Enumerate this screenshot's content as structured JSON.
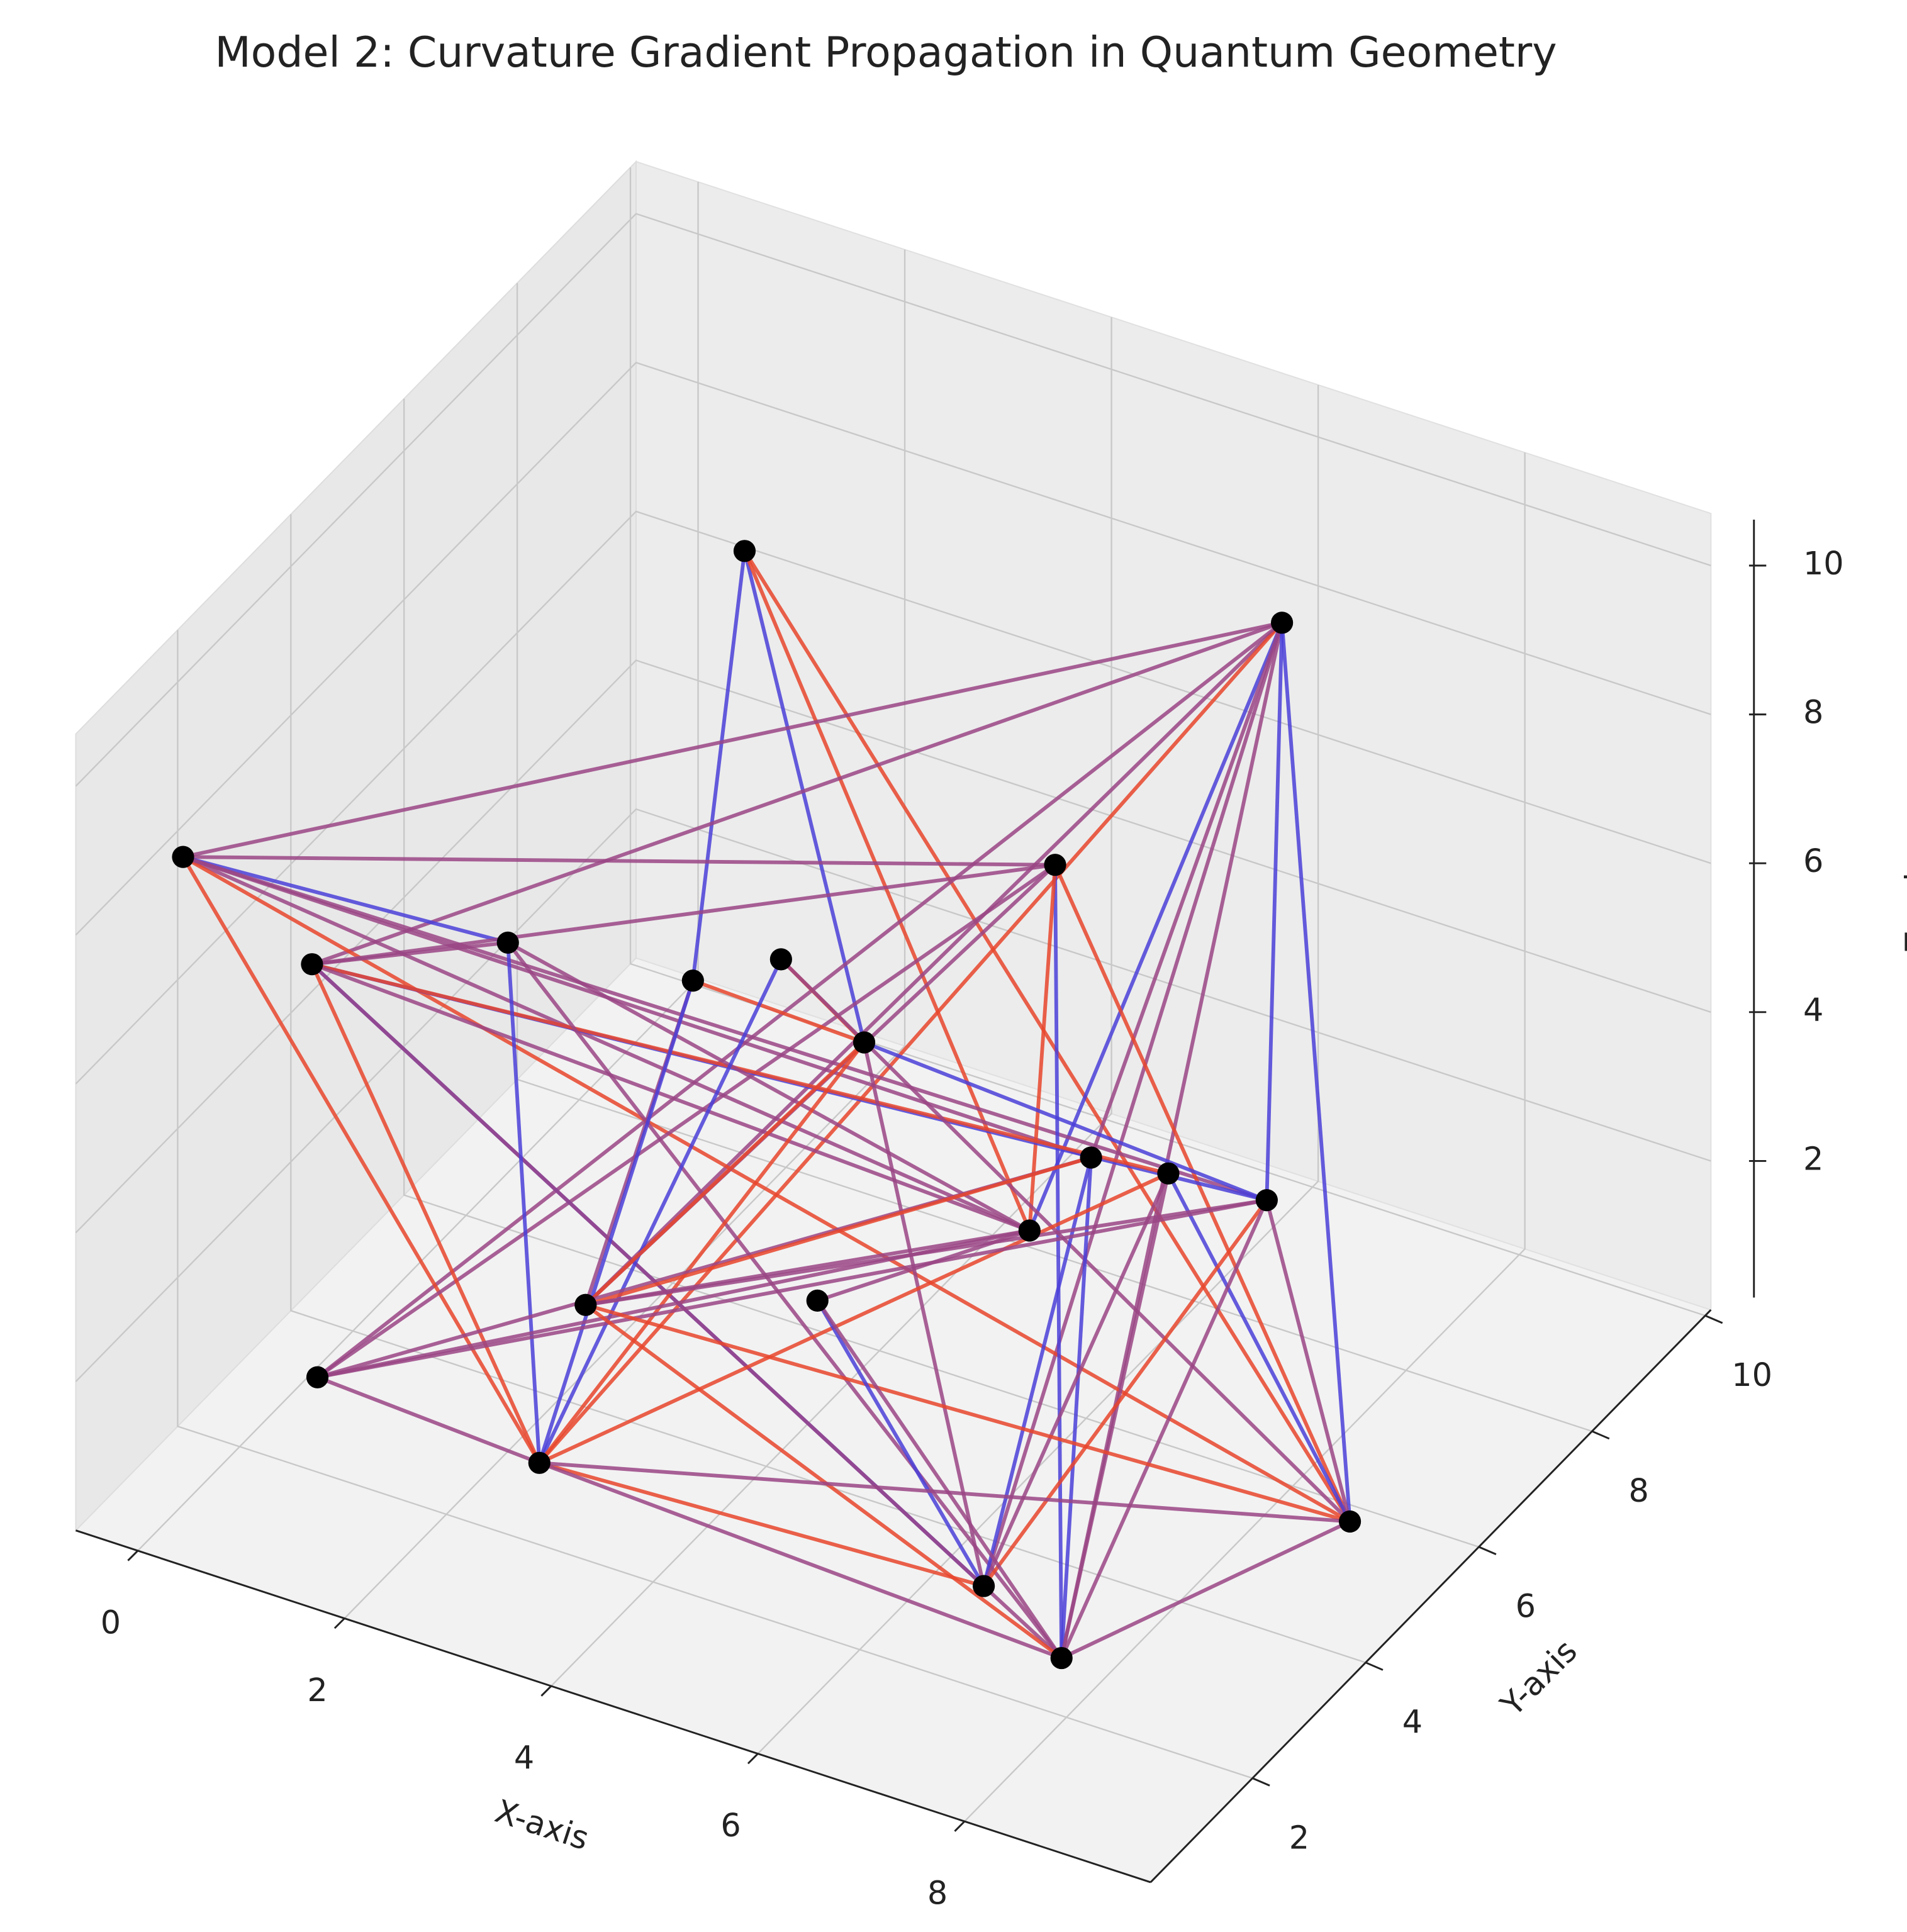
{
  "chart_data": {
    "type": "network3d",
    "title": "Model 2: Curvature Gradient Propagation in Quantum Geometry",
    "xlabel": "X-axis",
    "ylabel": "Y-axis",
    "zlabel": "Z-axis",
    "nodes": {
      "x": [
        1.6,
        6.8,
        0.0,
        5.7,
        0.7,
        1.5,
        1.1,
        2.5,
        4.4,
        5.5,
        5.7,
        7.2,
        6.0,
        2.8,
        3.4,
        1.3,
        2.9,
        9.1,
        7.2,
        8.5
      ],
      "y": [
        8,
        8,
        1,
        6,
        2,
        4,
        8,
        7,
        5,
        7,
        8,
        7,
        5,
        3,
        6,
        1,
        2,
        5,
        2,
        1
      ],
      "z": [
        8.1,
        9.5,
        8.7,
        7.3,
        6.8,
        5.9,
        2.1,
        3.8,
        5.1,
        2.5,
        1.6,
        2.7,
        3.3,
        2.4,
        0.4,
        2.3,
        1.1,
        0.8,
        1.4,
        1.8
      ]
    },
    "node_color": "#000000",
    "edges": [
      [
        0,
        6
      ],
      [
        0,
        8
      ],
      [
        0,
        12
      ],
      [
        0,
        17
      ],
      [
        1,
        2
      ],
      [
        1,
        4
      ],
      [
        1,
        13
      ],
      [
        1,
        16
      ],
      [
        1,
        18
      ],
      [
        1,
        19
      ],
      [
        1,
        12
      ],
      [
        1,
        11
      ],
      [
        1,
        17
      ],
      [
        1,
        9
      ],
      [
        1,
        15
      ],
      [
        2,
        3
      ],
      [
        2,
        5
      ],
      [
        2,
        16
      ],
      [
        2,
        12
      ],
      [
        2,
        17
      ],
      [
        2,
        11
      ],
      [
        2,
        9
      ],
      [
        3,
        4
      ],
      [
        3,
        13
      ],
      [
        3,
        15
      ],
      [
        3,
        19
      ],
      [
        3,
        12
      ],
      [
        3,
        17
      ],
      [
        4,
        5
      ],
      [
        4,
        16
      ],
      [
        4,
        18
      ],
      [
        4,
        11
      ],
      [
        4,
        10
      ],
      [
        4,
        19
      ],
      [
        4,
        12
      ],
      [
        5,
        16
      ],
      [
        5,
        19
      ],
      [
        5,
        12
      ],
      [
        6,
        8
      ],
      [
        6,
        13
      ],
      [
        6,
        16
      ],
      [
        7,
        8
      ],
      [
        7,
        16
      ],
      [
        7,
        17
      ],
      [
        8,
        11
      ],
      [
        8,
        13
      ],
      [
        8,
        16
      ],
      [
        8,
        18
      ],
      [
        9,
        18
      ],
      [
        9,
        19
      ],
      [
        9,
        15
      ],
      [
        9,
        13
      ],
      [
        10,
        18
      ],
      [
        10,
        19
      ],
      [
        10,
        17
      ],
      [
        10,
        16
      ],
      [
        11,
        13
      ],
      [
        11,
        18
      ],
      [
        11,
        17
      ],
      [
        11,
        19
      ],
      [
        11,
        15
      ],
      [
        12,
        13
      ],
      [
        12,
        14
      ],
      [
        12,
        15
      ],
      [
        13,
        19
      ],
      [
        13,
        17
      ],
      [
        14,
        18
      ],
      [
        14,
        19
      ],
      [
        15,
        16
      ],
      [
        16,
        18
      ],
      [
        16,
        17
      ],
      [
        16,
        19
      ],
      [
        17,
        19
      ]
    ],
    "edge_colors": [
      "#4a3fd8",
      "#4a3fd8",
      "#e8452c",
      "#e8452c",
      "#9a4585",
      "#9a4585",
      "#9a4585",
      "#e8452c",
      "#9a4585",
      "#9a4585",
      "#4a3fd8",
      "#4a3fd8",
      "#4a3fd8",
      "#9a4585",
      "#9a4585",
      "#9a4585",
      "#4a3fd8",
      "#e8452c",
      "#9a4585",
      "#e8452c",
      "#9a4585",
      "#9a4585",
      "#9a4585",
      "#9a4585",
      "#9a4585",
      "#4a3fd8",
      "#e8452c",
      "#e8452c",
      "#9a4585",
      "#e8452c",
      "#4a3fd8",
      "#4a3fd8",
      "#e8452c",
      "#9a4585",
      "#9a4585",
      "#4a3fd8",
      "#9a4585",
      "#9a4585",
      "#e8452c",
      "#9a4585",
      "#4a3fd8",
      "#e8452c",
      "#4a3fd8",
      "#9a4585",
      "#4a3fd8",
      "#e8452c",
      "#e8452c",
      "#9a4585",
      "#4a3fd8",
      "#4a3fd8",
      "#9a4585",
      "#e8452c",
      "#9a4585",
      "#9a4585",
      "#4a3fd8",
      "#e8452c",
      "#9a4585",
      "#e8452c",
      "#9a4585",
      "#9a4585",
      "#9a4585",
      "#9a4585",
      "#9a4585",
      "#9a4585",
      "#e8452c",
      "#e8452c",
      "#4a3fd8",
      "#9a4585",
      "#9a4585",
      "#e8452c",
      "#9a4585",
      "#9a4585",
      "#9a4585"
    ],
    "xlim": [
      -0.6,
      9.8
    ],
    "ylim": [
      0.2,
      10.1
    ],
    "zlim": [
      0,
      10.7
    ],
    "xticks": [
      0,
      2,
      4,
      6,
      8
    ],
    "yticks": [
      2,
      4,
      6,
      8,
      10
    ],
    "zticks": [
      2,
      4,
      6,
      8,
      10
    ],
    "grid": true
  }
}
